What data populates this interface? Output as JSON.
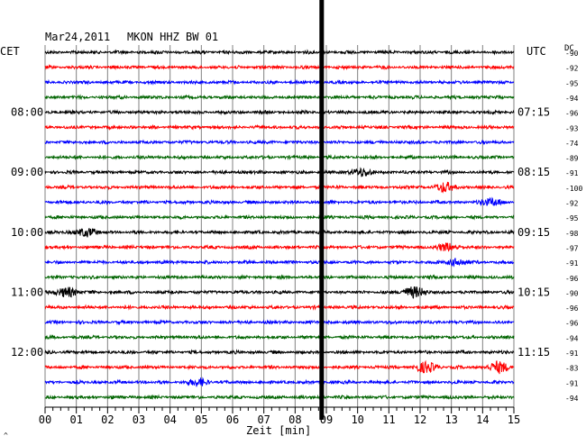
{
  "header": {
    "date": "Mar24,2011",
    "station": "MKON HHZ BW 01",
    "left_tz": "CET",
    "right_tz": "UTC",
    "dc_label": "DC"
  },
  "footer": {
    "xlabel": "Zeit [min]",
    "corner_mark": "^"
  },
  "colors": {
    "black": "#000000",
    "red": "#ff0000",
    "blue": "#0000ff",
    "green": "#006400",
    "grid": "#808080"
  },
  "chart_data": {
    "type": "line",
    "title": "Mar24,2011 MKON HHZ BW 01",
    "xlabel": "Zeit [min]",
    "xlim": [
      0,
      15
    ],
    "x_ticks": [
      "00",
      "01",
      "02",
      "03",
      "04",
      "05",
      "06",
      "07",
      "08",
      "09",
      "10",
      "11",
      "12",
      "13",
      "14",
      "15"
    ],
    "trace_interval_min": 15,
    "color_cycle": [
      "black",
      "red",
      "blue",
      "green"
    ],
    "left_time_labels": [
      {
        "trace": 4,
        "text": "08:00"
      },
      {
        "trace": 8,
        "text": "09:00"
      },
      {
        "trace": 12,
        "text": "10:00"
      },
      {
        "trace": 16,
        "text": "11:00"
      },
      {
        "trace": 20,
        "text": "12:00"
      }
    ],
    "right_time_labels": [
      {
        "trace": 4,
        "text": "07:15"
      },
      {
        "trace": 8,
        "text": "08:15"
      },
      {
        "trace": 12,
        "text": "09:15"
      },
      {
        "trace": 16,
        "text": "10:15"
      },
      {
        "trace": 20,
        "text": "11:15"
      }
    ],
    "dc_offsets": [
      "-90",
      "-92",
      "-95",
      "-94",
      "-96",
      "-93",
      "-74",
      "-89",
      "-91",
      "-100",
      "-92",
      "-95",
      "-98",
      "-97",
      "-91",
      "-96",
      "-90",
      "-96",
      "-96",
      "-94",
      "-91",
      "-83",
      "-91",
      "-94"
    ],
    "vertical_marker_min": 8.85,
    "events": [
      {
        "trace": 12,
        "x": 1.3,
        "amp": 2.2
      },
      {
        "trace": 13,
        "x": 12.9,
        "amp": 2.0
      },
      {
        "trace": 16,
        "x": 0.7,
        "amp": 2.5
      },
      {
        "trace": 16,
        "x": 11.8,
        "amp": 3.0
      },
      {
        "trace": 21,
        "x": 12.2,
        "amp": 2.8
      },
      {
        "trace": 21,
        "x": 14.5,
        "amp": 2.8
      },
      {
        "trace": 22,
        "x": 4.9,
        "amp": 1.8
      },
      {
        "trace": 8,
        "x": 10.1,
        "amp": 2.0
      },
      {
        "trace": 9,
        "x": 12.8,
        "amp": 2.3
      },
      {
        "trace": 10,
        "x": 14.3,
        "amp": 2.0
      },
      {
        "trace": 14,
        "x": 13.2,
        "amp": 1.8
      }
    ]
  }
}
